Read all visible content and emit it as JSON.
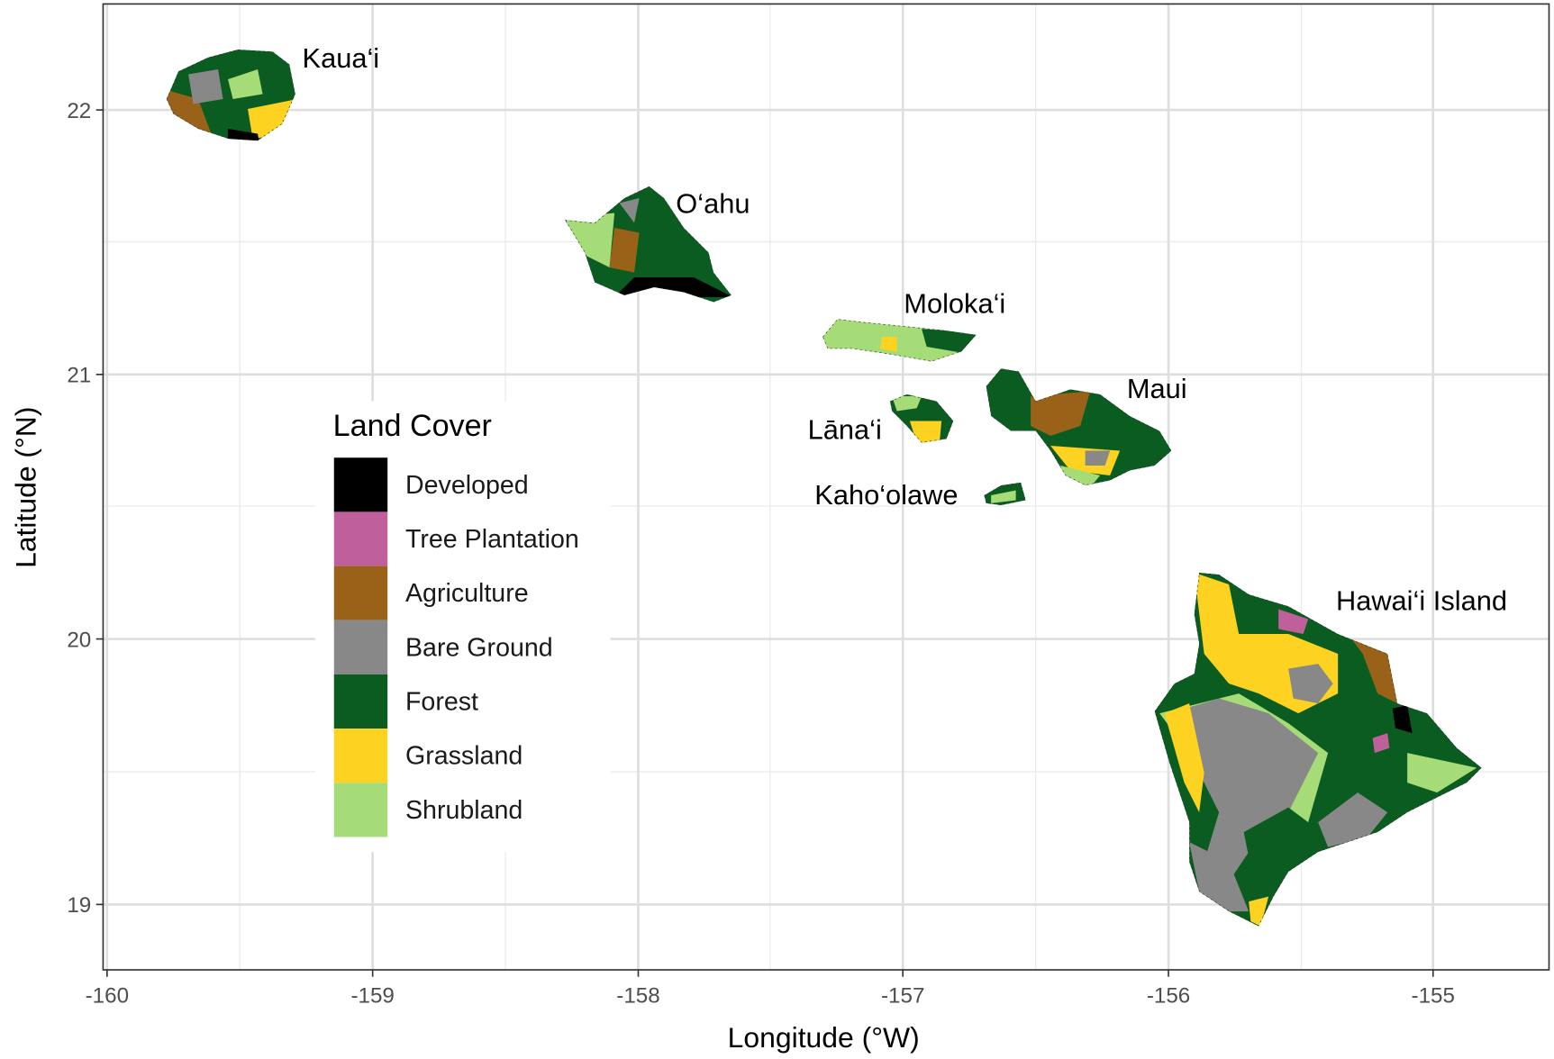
{
  "map": {
    "x_axis": {
      "label": "Longitude (°W)",
      "ticks": [
        "-160",
        "-159",
        "-158",
        "-157",
        "-156",
        "-155"
      ]
    },
    "y_axis": {
      "label": "Latitude (°N)",
      "ticks": [
        "22",
        "21",
        "20",
        "19"
      ]
    },
    "islands": [
      {
        "name": "Kaua‘i"
      },
      {
        "name": "O‘ahu"
      },
      {
        "name": "Moloka‘i"
      },
      {
        "name": "Lāna‘i"
      },
      {
        "name": "Maui"
      },
      {
        "name": "Kaho‘olawe"
      },
      {
        "name": "Hawai‘i Island"
      }
    ],
    "legend": {
      "title": "Land Cover",
      "items": [
        {
          "label": "Developed",
          "color": "#000000"
        },
        {
          "label": "Tree Plantation",
          "color": "#C0609A"
        },
        {
          "label": "Agriculture",
          "color": "#9A6219"
        },
        {
          "label": "Bare Ground",
          "color": "#888888"
        },
        {
          "label": "Forest",
          "color": "#0B5C20"
        },
        {
          "label": "Grassland",
          "color": "#FDD221"
        },
        {
          "label": "Shrubland",
          "color": "#A5DC78"
        }
      ]
    }
  }
}
